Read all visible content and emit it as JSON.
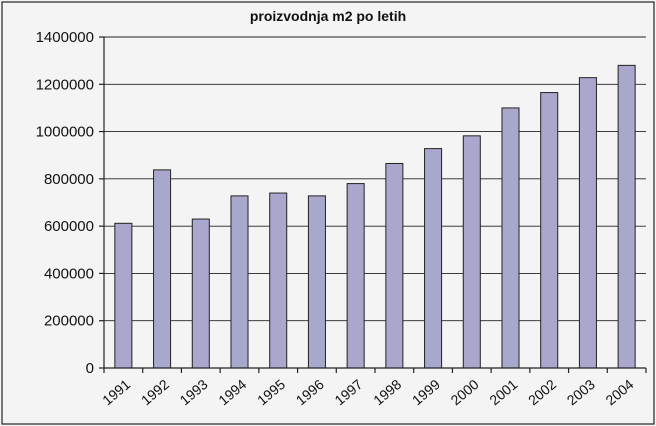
{
  "chart_data": {
    "type": "bar",
    "title": "proizvodnja m2 po letih",
    "xlabel": "",
    "ylabel": "",
    "categories": [
      "1991",
      "1992",
      "1993",
      "1994",
      "1995",
      "1996",
      "1997",
      "1998",
      "1999",
      "2000",
      "2001",
      "2002",
      "2003",
      "2004"
    ],
    "values": [
      612000,
      838000,
      630000,
      728000,
      740000,
      728000,
      780000,
      865000,
      928000,
      982000,
      1100000,
      1165000,
      1228000,
      1280000
    ],
    "ylim": [
      0,
      1400000
    ],
    "yticks": [
      0,
      200000,
      400000,
      600000,
      800000,
      1000000,
      1200000,
      1400000
    ],
    "ytick_labels": [
      "0",
      "200000",
      "400000",
      "600000",
      "800000",
      "1000000",
      "1200000",
      "1400000"
    ],
    "grid": true,
    "legend": "none",
    "bar_color": "#a9a7cc"
  }
}
